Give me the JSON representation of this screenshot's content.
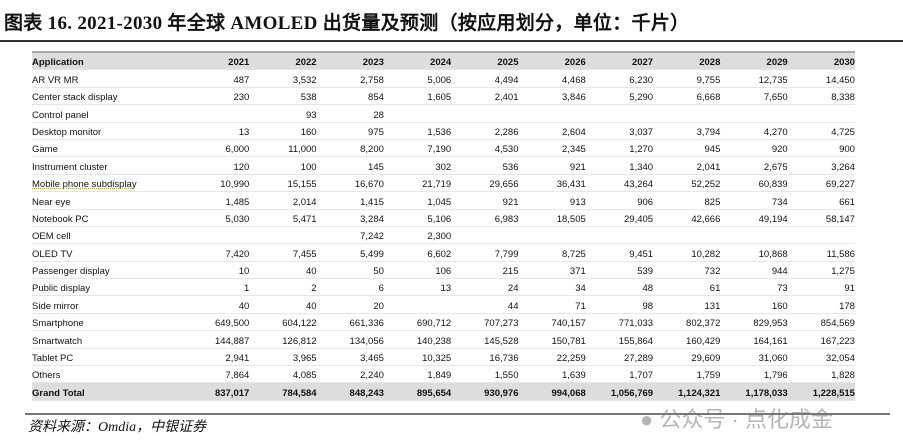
{
  "title": "图表 16. 2021-2030 年全球 AMOLED 出货量及预测（按应用划分，单位：千片）",
  "table": {
    "headers": [
      "Application",
      "2021",
      "2022",
      "2023",
      "2024",
      "2025",
      "2026",
      "2027",
      "2028",
      "2029",
      "2030"
    ],
    "rows": [
      [
        "AR VR MR",
        "487",
        "3,532",
        "2,758",
        "5,006",
        "4,494",
        "4,468",
        "6,230",
        "9,755",
        "12,735",
        "14,450"
      ],
      [
        "Center stack display",
        "230",
        "538",
        "854",
        "1,605",
        "2,401",
        "3,846",
        "5,290",
        "6,668",
        "7,650",
        "8,338"
      ],
      [
        "Control panel",
        "",
        "93",
        "28",
        "",
        "",
        "",
        "",
        "",
        "",
        ""
      ],
      [
        "Desktop monitor",
        "13",
        "160",
        "975",
        "1,536",
        "2,286",
        "2,604",
        "3,037",
        "3,794",
        "4,270",
        "4,725"
      ],
      [
        "Game",
        "6,000",
        "11,000",
        "8,200",
        "7,190",
        "4,530",
        "2,345",
        "1,270",
        "945",
        "920",
        "900"
      ],
      [
        "Instrument cluster",
        "120",
        "100",
        "145",
        "302",
        "536",
        "921",
        "1,340",
        "2,041",
        "2,675",
        "3,264"
      ],
      [
        "Mobile phone subdisplay",
        "10,990",
        "15,155",
        "16,670",
        "21,719",
        "29,656",
        "36,431",
        "43,264",
        "52,252",
        "60,839",
        "69,227"
      ],
      [
        "Near eye",
        "1,485",
        "2,014",
        "1,415",
        "1,045",
        "921",
        "913",
        "906",
        "825",
        "734",
        "661"
      ],
      [
        "Notebook PC",
        "5,030",
        "5,471",
        "3,284",
        "5,106",
        "6,983",
        "18,505",
        "29,405",
        "42,666",
        "49,194",
        "58,147"
      ],
      [
        "OEM cell",
        "",
        "",
        "7,242",
        "2,300",
        "",
        "",
        "",
        "",
        "",
        ""
      ],
      [
        "OLED TV",
        "7,420",
        "7,455",
        "5,499",
        "6,602",
        "7,799",
        "8,725",
        "9,451",
        "10,282",
        "10,868",
        "11,586"
      ],
      [
        "Passenger display",
        "10",
        "40",
        "50",
        "106",
        "215",
        "371",
        "539",
        "732",
        "944",
        "1,275"
      ],
      [
        "Public display",
        "1",
        "2",
        "6",
        "13",
        "24",
        "34",
        "48",
        "61",
        "73",
        "91"
      ],
      [
        "Side mirror",
        "40",
        "40",
        "20",
        "",
        "44",
        "71",
        "98",
        "131",
        "160",
        "178"
      ],
      [
        "Smartphone",
        "649,500",
        "604,122",
        "661,336",
        "690,712",
        "707,273",
        "740,157",
        "771,033",
        "802,372",
        "829,953",
        "854,569"
      ],
      [
        "Smartwatch",
        "144,887",
        "126,812",
        "134,056",
        "140,238",
        "145,528",
        "150,781",
        "155,864",
        "160,429",
        "164,161",
        "167,223"
      ],
      [
        "Tablet PC",
        "2,941",
        "3,965",
        "3,465",
        "10,325",
        "16,736",
        "22,259",
        "27,289",
        "29,609",
        "31,060",
        "32,054"
      ],
      [
        "Others",
        "7,864",
        "4,085",
        "2,240",
        "1,849",
        "1,550",
        "1,639",
        "1,707",
        "1,759",
        "1,796",
        "1,828"
      ]
    ],
    "total": [
      "Grand Total",
      "837,017",
      "784,584",
      "848,243",
      "895,654",
      "930,976",
      "994,068",
      "1,056,769",
      "1,124,321",
      "1,178,033",
      "1,228,515"
    ]
  },
  "source": "资料来源：Omdia，中银证券",
  "watermark": "公众号 · 点化成金"
}
